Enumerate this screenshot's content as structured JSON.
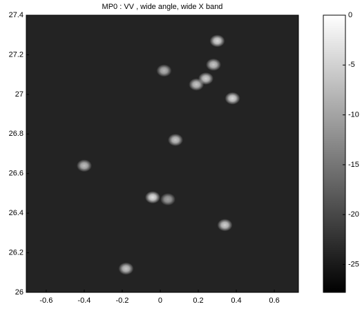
{
  "chart_data": {
    "type": "heatmap",
    "title": "MP0 : VV , wide angle, wide X band",
    "x": [
      0.3,
      0.28,
      0.24,
      0.19,
      0.02,
      0.38,
      0.08,
      -0.4,
      -0.04,
      0.04,
      0.34,
      -0.18
    ],
    "y": [
      27.27,
      27.15,
      27.08,
      27.05,
      27.12,
      26.98,
      26.77,
      26.64,
      26.48,
      26.47,
      26.34,
      26.12
    ],
    "values": [
      -4,
      -6,
      -5,
      -6,
      -8,
      -4,
      -6,
      -7,
      -3,
      -10,
      -5,
      -6
    ],
    "background_value": -24,
    "xlim": [
      -0.705,
      0.727
    ],
    "ylim": [
      26,
      27.4
    ],
    "xticks": [
      -0.6,
      -0.4,
      -0.2,
      0,
      0.2,
      0.4,
      0.6
    ],
    "yticks": [
      26,
      26.2,
      26.4,
      26.6,
      26.8,
      27,
      27.2,
      27.4
    ],
    "clim": [
      -27.8,
      0
    ],
    "cticks": [
      0,
      -5,
      -10,
      -15,
      -20,
      -25
    ],
    "colormap": "gray"
  }
}
